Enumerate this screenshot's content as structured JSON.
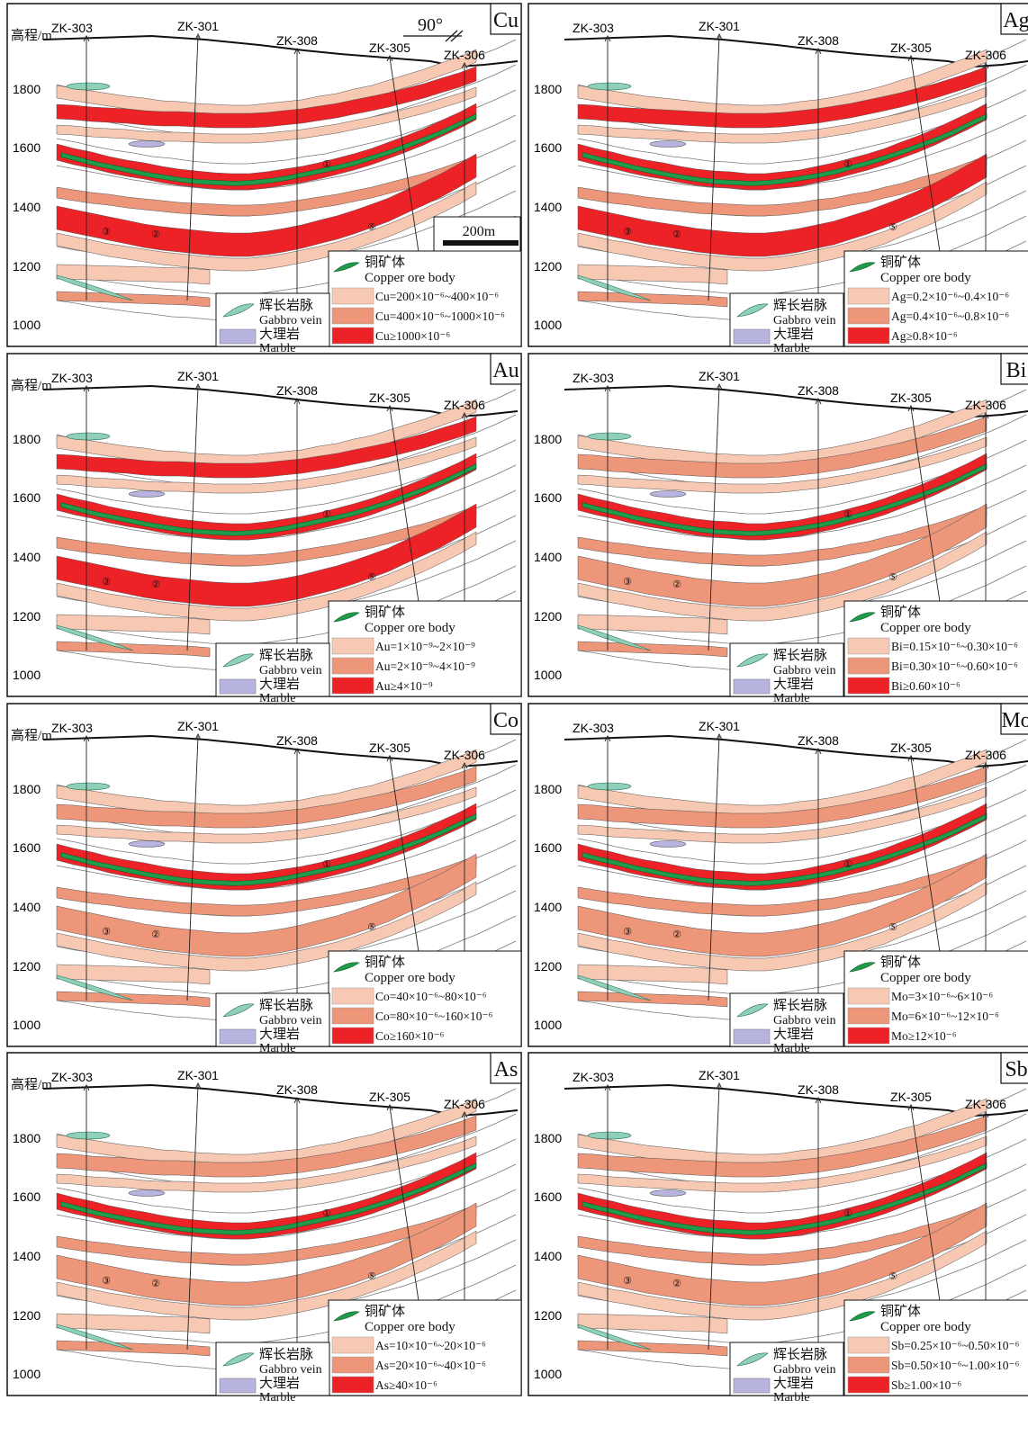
{
  "figure": {
    "elevation_axis_label": "高程/m",
    "elevation_ticks": [
      "1800",
      "1600",
      "1400",
      "1200",
      "1000"
    ],
    "orientation_label": "90°",
    "scale_bar_label": "200m",
    "drillholes": [
      "ZK-303",
      "ZK-301",
      "ZK-308",
      "ZK-305",
      "ZK-306"
    ]
  },
  "legend_common": {
    "ore_body_cn": "铜矿体",
    "ore_body_en": "Copper ore body",
    "gabbro_cn": "辉长岩脉",
    "gabbro_en": "Gabbro vein",
    "marble_cn": "大理岩",
    "marble_en": "Marble"
  },
  "colors": {
    "low": "#f7c8b2",
    "mid": "#ee9679",
    "high": "#ec2227",
    "ore_body": "#1f9b4a",
    "gabbro": "#8fd1b8",
    "marble": "#b7b4e0"
  },
  "panels": [
    {
      "element": "Cu",
      "grade_low": "Cu=200×10⁻⁶~400×10⁻⁶",
      "grade_mid": "Cu=400×10⁻⁶~1000×10⁻⁶",
      "grade_high": "Cu≥1000×10⁻⁶",
      "labels": [
        "①",
        "③",
        "②",
        "⑤"
      ]
    },
    {
      "element": "Ag",
      "grade_low": "Ag=0.2×10⁻⁶~0.4×10⁻⁶",
      "grade_mid": "Ag=0.4×10⁻⁶~0.8×10⁻⁶",
      "grade_high": "Ag≥0.8×10⁻⁶",
      "labels": [
        "①",
        "③",
        "②",
        "⑤"
      ]
    },
    {
      "element": "Au",
      "grade_low": "Au=1×10⁻⁹~2×10⁻⁹",
      "grade_mid": "Au=2×10⁻⁹~4×10⁻⁹",
      "grade_high": "Au≥4×10⁻⁹",
      "labels": [
        "①",
        "③",
        "②",
        "⑤"
      ]
    },
    {
      "element": "Bi",
      "grade_low": "Bi=0.15×10⁻⁶~0.30×10⁻⁶",
      "grade_mid": "Bi=0.30×10⁻⁶~0.60×10⁻⁶",
      "grade_high": "Bi≥0.60×10⁻⁶",
      "labels": [
        "①",
        "③",
        "②",
        "⑤"
      ]
    },
    {
      "element": "Co",
      "grade_low": "Co=40×10⁻⁶~80×10⁻⁶",
      "grade_mid": "Co=80×10⁻⁶~160×10⁻⁶",
      "grade_high": "Co≥160×10⁻⁶",
      "labels": [
        "①",
        "③",
        "②",
        "⑤"
      ]
    },
    {
      "element": "Mo",
      "grade_low": "Mo=3×10⁻⁶~6×10⁻⁶",
      "grade_mid": "Mo=6×10⁻⁶~12×10⁻⁶",
      "grade_high": "Mo≥12×10⁻⁶",
      "labels": [
        "①",
        "③",
        "②",
        "⑤"
      ]
    },
    {
      "element": "As",
      "grade_low": "As=10×10⁻⁶~20×10⁻⁶",
      "grade_mid": "As=20×10⁻⁶~40×10⁻⁶",
      "grade_high": "As≥40×10⁻⁶",
      "labels": [
        "①",
        "③",
        "②",
        "⑤"
      ]
    },
    {
      "element": "Sb",
      "grade_low": "Sb=0.25×10⁻⁶~0.50×10⁻⁶",
      "grade_mid": "Sb=0.50×10⁻⁶~1.00×10⁻⁶",
      "grade_high": "Sb≥1.00×10⁻⁶",
      "labels": [
        "①",
        "③",
        "②",
        "⑤"
      ]
    }
  ]
}
